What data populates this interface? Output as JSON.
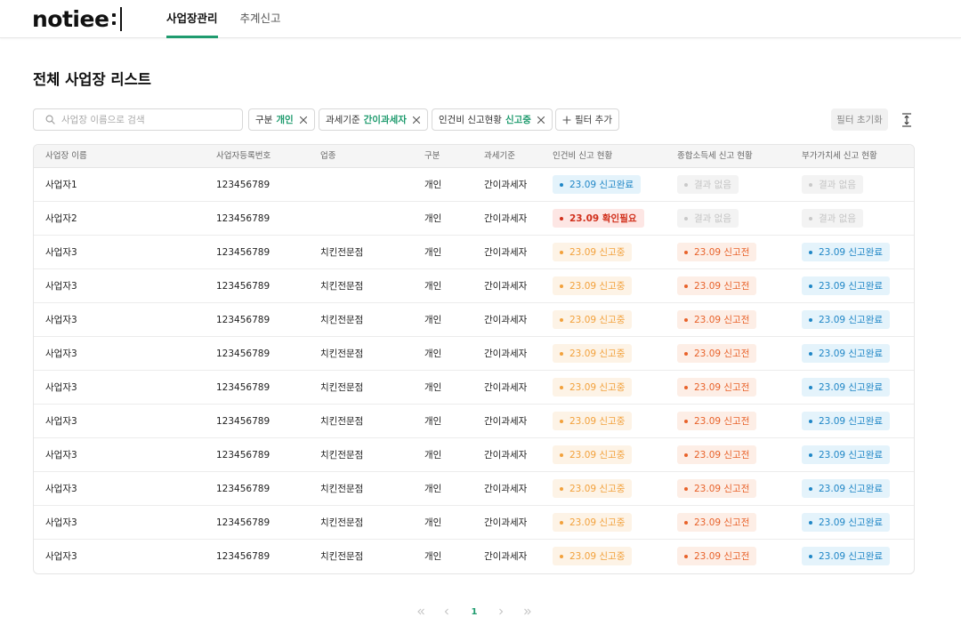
{
  "header": {
    "logo": "notiee",
    "tabs": [
      {
        "label": "사업장관리",
        "active": true
      },
      {
        "label": "추계신고",
        "active": false
      }
    ]
  },
  "page_title": "전체 사업장 리스트",
  "search": {
    "placeholder": "사업장 이름으로 검색",
    "value": ""
  },
  "filters": [
    {
      "label": "구분",
      "value": "개인"
    },
    {
      "label": "과세기준",
      "value": "간이과세자"
    },
    {
      "label": "인건비 신고현황",
      "value": "신고중"
    }
  ],
  "add_filter_label": "필터 추가",
  "reset_filter_label": "필터 초기화",
  "table": {
    "columns": [
      "사업장 이름",
      "사업자등록번호",
      "업종",
      "구분",
      "과세기준",
      "인건비 신고 현황",
      "종합소득세 신고 현황",
      "부가가치세 신고 현황"
    ],
    "rows": [
      {
        "name": "사업자1",
        "reg_no": "123456789",
        "industry": "",
        "type": "개인",
        "tax_basis": "간이과세자",
        "labor": {
          "text": "23.09 신고완료",
          "status": "done"
        },
        "income": {
          "text": "결과 없음",
          "status": "none"
        },
        "vat": {
          "text": "결과 없음",
          "status": "none"
        }
      },
      {
        "name": "사업자2",
        "reg_no": "123456789",
        "industry": "",
        "type": "개인",
        "tax_basis": "간이과세자",
        "labor": {
          "text": "23.09 확인필요",
          "status": "check"
        },
        "income": {
          "text": "결과 없음",
          "status": "none"
        },
        "vat": {
          "text": "결과 없음",
          "status": "none"
        }
      },
      {
        "name": "사업자3",
        "reg_no": "123456789",
        "industry": "치킨전문점",
        "type": "개인",
        "tax_basis": "간이과세자",
        "labor": {
          "text": "23.09 신고중",
          "status": "inprog"
        },
        "income": {
          "text": "23.09 신고전",
          "status": "before"
        },
        "vat": {
          "text": "23.09 신고완료",
          "status": "done"
        }
      },
      {
        "name": "사업자3",
        "reg_no": "123456789",
        "industry": "치킨전문점",
        "type": "개인",
        "tax_basis": "간이과세자",
        "labor": {
          "text": "23.09 신고중",
          "status": "inprog"
        },
        "income": {
          "text": "23.09 신고전",
          "status": "before"
        },
        "vat": {
          "text": "23.09 신고완료",
          "status": "done"
        }
      },
      {
        "name": "사업자3",
        "reg_no": "123456789",
        "industry": "치킨전문점",
        "type": "개인",
        "tax_basis": "간이과세자",
        "labor": {
          "text": "23.09 신고중",
          "status": "inprog"
        },
        "income": {
          "text": "23.09 신고전",
          "status": "before"
        },
        "vat": {
          "text": "23.09 신고완료",
          "status": "done"
        }
      },
      {
        "name": "사업자3",
        "reg_no": "123456789",
        "industry": "치킨전문점",
        "type": "개인",
        "tax_basis": "간이과세자",
        "labor": {
          "text": "23.09 신고중",
          "status": "inprog"
        },
        "income": {
          "text": "23.09 신고전",
          "status": "before"
        },
        "vat": {
          "text": "23.09 신고완료",
          "status": "done"
        }
      },
      {
        "name": "사업자3",
        "reg_no": "123456789",
        "industry": "치킨전문점",
        "type": "개인",
        "tax_basis": "간이과세자",
        "labor": {
          "text": "23.09 신고중",
          "status": "inprog"
        },
        "income": {
          "text": "23.09 신고전",
          "status": "before"
        },
        "vat": {
          "text": "23.09 신고완료",
          "status": "done"
        }
      },
      {
        "name": "사업자3",
        "reg_no": "123456789",
        "industry": "치킨전문점",
        "type": "개인",
        "tax_basis": "간이과세자",
        "labor": {
          "text": "23.09 신고중",
          "status": "inprog"
        },
        "income": {
          "text": "23.09 신고전",
          "status": "before"
        },
        "vat": {
          "text": "23.09 신고완료",
          "status": "done"
        }
      },
      {
        "name": "사업자3",
        "reg_no": "123456789",
        "industry": "치킨전문점",
        "type": "개인",
        "tax_basis": "간이과세자",
        "labor": {
          "text": "23.09 신고중",
          "status": "inprog"
        },
        "income": {
          "text": "23.09 신고전",
          "status": "before"
        },
        "vat": {
          "text": "23.09 신고완료",
          "status": "done"
        }
      },
      {
        "name": "사업자3",
        "reg_no": "123456789",
        "industry": "치킨전문점",
        "type": "개인",
        "tax_basis": "간이과세자",
        "labor": {
          "text": "23.09 신고중",
          "status": "inprog"
        },
        "income": {
          "text": "23.09 신고전",
          "status": "before"
        },
        "vat": {
          "text": "23.09 신고완료",
          "status": "done"
        }
      },
      {
        "name": "사업자3",
        "reg_no": "123456789",
        "industry": "치킨전문점",
        "type": "개인",
        "tax_basis": "간이과세자",
        "labor": {
          "text": "23.09 신고중",
          "status": "inprog"
        },
        "income": {
          "text": "23.09 신고전",
          "status": "before"
        },
        "vat": {
          "text": "23.09 신고완료",
          "status": "done"
        }
      },
      {
        "name": "사업자3",
        "reg_no": "123456789",
        "industry": "치킨전문점",
        "type": "개인",
        "tax_basis": "간이과세자",
        "labor": {
          "text": "23.09 신고중",
          "status": "inprog"
        },
        "income": {
          "text": "23.09 신고전",
          "status": "before"
        },
        "vat": {
          "text": "23.09 신고완료",
          "status": "done"
        }
      }
    ]
  },
  "pagination": {
    "current_page": "1"
  },
  "colors": {
    "accent": "#1f9b6e",
    "status_done": "#1f86c6",
    "status_check": "#d1301c",
    "status_inprog": "#f2a13c",
    "status_before": "#e8622a",
    "status_none": "#c4c4c4"
  },
  "icons": {
    "search": "search-icon",
    "close": "close-icon",
    "add": "plus-icon",
    "expand": "expand-vertical-icon",
    "first": "double-chevron-left-icon",
    "prev": "chevron-left-icon",
    "next": "chevron-right-icon",
    "last": "double-chevron-right-icon"
  }
}
